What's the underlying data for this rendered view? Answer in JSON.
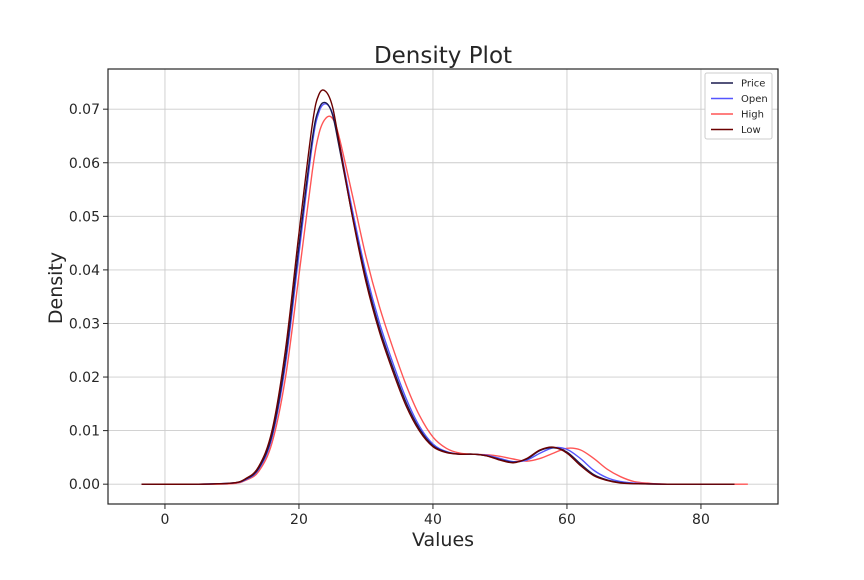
{
  "chart_data": {
    "type": "line",
    "title": "Density Plot",
    "xlabel": "Values",
    "ylabel": "Density",
    "xlim": [
      -8.5,
      91.5
    ],
    "ylim": [
      -0.0037,
      0.0775
    ],
    "xticks": [
      0,
      20,
      40,
      60,
      80
    ],
    "xtick_labels": [
      "0",
      "20",
      "40",
      "60",
      "80"
    ],
    "yticks": [
      0.0,
      0.01,
      0.02,
      0.03,
      0.04,
      0.05,
      0.06,
      0.07
    ],
    "ytick_labels": [
      "0.00",
      "0.01",
      "0.02",
      "0.03",
      "0.04",
      "0.05",
      "0.06",
      "0.07"
    ],
    "grid": true,
    "legend_position": "top-right",
    "series": [
      {
        "name": "Price",
        "color": "#1a1a4e",
        "points": [
          [
            -3.5,
            0
          ],
          [
            5,
            0
          ],
          [
            10,
            0.0002
          ],
          [
            12,
            0.0009
          ],
          [
            14,
            0.003
          ],
          [
            16,
            0.0093
          ],
          [
            18,
            0.0235
          ],
          [
            20,
            0.0445
          ],
          [
            22,
            0.0645
          ],
          [
            23,
            0.0701
          ],
          [
            24,
            0.0712
          ],
          [
            25,
            0.069
          ],
          [
            26,
            0.063
          ],
          [
            28,
            0.05
          ],
          [
            30,
            0.0385
          ],
          [
            32,
            0.0292
          ],
          [
            34,
            0.0218
          ],
          [
            36,
            0.0152
          ],
          [
            38,
            0.0103
          ],
          [
            40,
            0.0072
          ],
          [
            42,
            0.006
          ],
          [
            44,
            0.0056
          ],
          [
            46,
            0.0056
          ],
          [
            48,
            0.0053
          ],
          [
            50,
            0.0046
          ],
          [
            52,
            0.0041
          ],
          [
            54,
            0.0047
          ],
          [
            56,
            0.0063
          ],
          [
            58,
            0.0068
          ],
          [
            60,
            0.006
          ],
          [
            62,
            0.0038
          ],
          [
            64,
            0.0018
          ],
          [
            66,
            0.0008
          ],
          [
            68,
            0.0003
          ],
          [
            70,
            0.0001
          ],
          [
            75,
            0
          ],
          [
            85,
            0
          ]
        ]
      },
      {
        "name": "Open",
        "color": "#5555ff",
        "points": [
          [
            -3.5,
            0
          ],
          [
            5,
            0
          ],
          [
            10,
            0.0002
          ],
          [
            12,
            0.0008
          ],
          [
            14,
            0.0028
          ],
          [
            16,
            0.0088
          ],
          [
            18,
            0.0225
          ],
          [
            20,
            0.043
          ],
          [
            22,
            0.0635
          ],
          [
            23,
            0.0695
          ],
          [
            24,
            0.071
          ],
          [
            25,
            0.0692
          ],
          [
            26,
            0.0638
          ],
          [
            28,
            0.051
          ],
          [
            30,
            0.0395
          ],
          [
            32,
            0.0302
          ],
          [
            34,
            0.0227
          ],
          [
            36,
            0.016
          ],
          [
            38,
            0.0108
          ],
          [
            40,
            0.0075
          ],
          [
            42,
            0.0061
          ],
          [
            44,
            0.0056
          ],
          [
            46,
            0.0056
          ],
          [
            48,
            0.0054
          ],
          [
            50,
            0.0048
          ],
          [
            52,
            0.0042
          ],
          [
            54,
            0.0045
          ],
          [
            56,
            0.0058
          ],
          [
            58,
            0.0068
          ],
          [
            60,
            0.0065
          ],
          [
            62,
            0.0048
          ],
          [
            64,
            0.0026
          ],
          [
            66,
            0.0012
          ],
          [
            68,
            0.0005
          ],
          [
            70,
            0.0002
          ],
          [
            75,
            0
          ],
          [
            85,
            0
          ]
        ]
      },
      {
        "name": "High",
        "color": "#ff5555",
        "points": [
          [
            -3.5,
            0
          ],
          [
            5,
            0
          ],
          [
            10,
            0.0001
          ],
          [
            12,
            0.0007
          ],
          [
            14,
            0.0024
          ],
          [
            16,
            0.0078
          ],
          [
            18,
            0.02
          ],
          [
            20,
            0.039
          ],
          [
            22,
            0.0585
          ],
          [
            23,
            0.0655
          ],
          [
            24,
            0.0683
          ],
          [
            25,
            0.0683
          ],
          [
            26,
            0.0648
          ],
          [
            28,
            0.0538
          ],
          [
            30,
            0.0425
          ],
          [
            32,
            0.0332
          ],
          [
            34,
            0.0255
          ],
          [
            36,
            0.0185
          ],
          [
            38,
            0.0128
          ],
          [
            40,
            0.0088
          ],
          [
            42,
            0.0067
          ],
          [
            44,
            0.0058
          ],
          [
            46,
            0.0056
          ],
          [
            48,
            0.0055
          ],
          [
            50,
            0.0052
          ],
          [
            52,
            0.0047
          ],
          [
            54,
            0.0043
          ],
          [
            56,
            0.0048
          ],
          [
            58,
            0.0058
          ],
          [
            60,
            0.0067
          ],
          [
            62,
            0.0064
          ],
          [
            64,
            0.0048
          ],
          [
            66,
            0.0028
          ],
          [
            68,
            0.0014
          ],
          [
            70,
            0.0005
          ],
          [
            72,
            0.0002
          ],
          [
            75,
            0
          ],
          [
            87,
            0
          ]
        ]
      },
      {
        "name": "Low",
        "color": "#6b0000",
        "points": [
          [
            -3.5,
            0
          ],
          [
            5,
            0
          ],
          [
            10,
            0.0002
          ],
          [
            12,
            0.001
          ],
          [
            14,
            0.0033
          ],
          [
            16,
            0.0101
          ],
          [
            18,
            0.0252
          ],
          [
            20,
            0.0468
          ],
          [
            22,
            0.0672
          ],
          [
            23,
            0.0728
          ],
          [
            24,
            0.0733
          ],
          [
            25,
            0.0705
          ],
          [
            26,
            0.0638
          ],
          [
            28,
            0.0498
          ],
          [
            30,
            0.0378
          ],
          [
            32,
            0.0285
          ],
          [
            34,
            0.0211
          ],
          [
            36,
            0.0146
          ],
          [
            38,
            0.0099
          ],
          [
            40,
            0.007
          ],
          [
            42,
            0.0059
          ],
          [
            44,
            0.0056
          ],
          [
            46,
            0.0056
          ],
          [
            48,
            0.0053
          ],
          [
            50,
            0.0045
          ],
          [
            52,
            0.004
          ],
          [
            54,
            0.0048
          ],
          [
            56,
            0.0064
          ],
          [
            58,
            0.0069
          ],
          [
            60,
            0.0058
          ],
          [
            62,
            0.0035
          ],
          [
            64,
            0.0016
          ],
          [
            66,
            0.0007
          ],
          [
            68,
            0.0002
          ],
          [
            70,
            0.0001
          ],
          [
            75,
            0
          ],
          [
            85,
            0
          ]
        ]
      }
    ]
  }
}
